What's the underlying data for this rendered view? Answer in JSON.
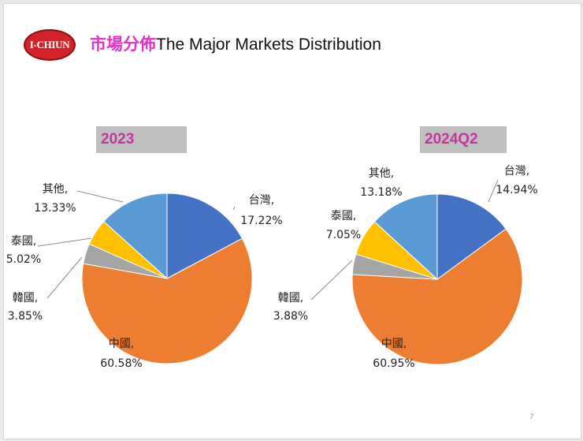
{
  "logo": {
    "text": "I-CHIUN"
  },
  "title": {
    "zh": "市場分佈",
    "en": "The Major Markets Distribution"
  },
  "colors": {
    "taiwan": "#4472c4",
    "china": "#ed7d31",
    "korea": "#a5a5a5",
    "thailand": "#ffc000",
    "others": "#5b9bd5"
  },
  "page_number": "7",
  "chart_data": [
    {
      "type": "pie",
      "title": "2023",
      "slices": [
        {
          "label": "台灣",
          "value": 17.22,
          "display": "17.22%",
          "color": "#4472c4"
        },
        {
          "label": "中國",
          "value": 60.58,
          "display": "60.58%",
          "color": "#ed7d31"
        },
        {
          "label": "韓國",
          "value": 3.85,
          "display": "3.85%",
          "color": "#a5a5a5"
        },
        {
          "label": "泰國",
          "value": 5.02,
          "display": "5.02%",
          "color": "#ffc000"
        },
        {
          "label": "其他",
          "value": 13.33,
          "display": "13.33%",
          "color": "#5b9bd5"
        }
      ]
    },
    {
      "type": "pie",
      "title": "2024Q2",
      "slices": [
        {
          "label": "台灣",
          "value": 14.94,
          "display": "14.94%",
          "color": "#4472c4"
        },
        {
          "label": "中國",
          "value": 60.95,
          "display": "60.95%",
          "color": "#ed7d31"
        },
        {
          "label": "韓國",
          "value": 3.88,
          "display": "3.88%",
          "color": "#a5a5a5"
        },
        {
          "label": "泰國",
          "value": 7.05,
          "display": "7.05%",
          "color": "#ffc000"
        },
        {
          "label": "其他",
          "value": 13.18,
          "display": "13.18%",
          "color": "#5b9bd5"
        }
      ]
    }
  ]
}
